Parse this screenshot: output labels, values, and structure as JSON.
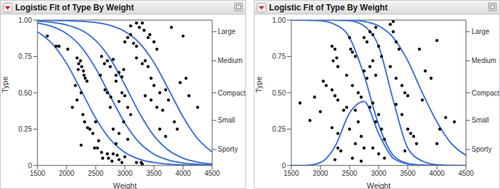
{
  "chart_data": [
    {
      "type": "scatter",
      "title": "Logistic Fit of Type By Weight",
      "x_label": "Weight",
      "y_label": "Type",
      "xlim": [
        1500,
        4500
      ],
      "xticks": [
        1500,
        2000,
        2500,
        3000,
        3500,
        4000,
        4500
      ],
      "ylim": [
        0,
        1
      ],
      "yticks": [
        0,
        0.25,
        {
          "value": 0.5,
          "label": "0.50"
        },
        0.75,
        {
          "value": 1,
          "label": "1.00"
        }
      ],
      "y2lim": [
        0,
        1
      ],
      "y2ticks": [
        {
          "value": 0.11,
          "label": "Sporty"
        },
        {
          "value": 0.31,
          "label": "Small"
        },
        {
          "value": 0.5,
          "label": "Compact"
        },
        {
          "value": 0.72,
          "label": "Medium"
        },
        {
          "value": 0.92,
          "label": "Large"
        }
      ],
      "x": [
        1500,
        1750,
        2000,
        2250,
        2500,
        2750,
        3000,
        3250,
        3500,
        3750,
        4000,
        4250,
        4500
      ],
      "series": [
        {
          "type": "scatter",
          "color": "#000000",
          "marker": "circle",
          "x": [
            1670,
            1820,
            1870,
            2020,
            2180,
            2210,
            2240,
            2260,
            2290,
            2300,
            2320,
            2350,
            2200,
            2150,
            2250,
            2100,
            2180,
            2280,
            2310,
            2360,
            2250,
            2450,
            2400,
            2480,
            2530,
            2600,
            2700,
            2720,
            2780,
            2800,
            2870,
            2900,
            2950,
            3000,
            3200,
            3280,
            3300,
            2620,
            2550,
            2500,
            2650,
            2700,
            2750,
            2800,
            2850,
            2900,
            2950,
            2980,
            2660,
            2700,
            2760,
            2850,
            2900,
            2950,
            3000,
            3050,
            3100,
            2750,
            2600,
            2580,
            2900,
            2980,
            3050,
            2800,
            2850,
            3000,
            3050,
            3100,
            3150,
            3200,
            3250,
            3300,
            3330,
            3400,
            3430,
            3500,
            3550,
            3200,
            3300,
            3350,
            3400,
            3450,
            3500,
            3600,
            3700,
            3350,
            3450,
            3550,
            3650,
            3750,
            3600,
            3700,
            3850,
            3900,
            4000,
            3800,
            4050,
            4100,
            4250,
            3950,
            3100,
            3200
          ],
          "values": [
            0.89,
            0.82,
            0.82,
            0.8,
            0.74,
            0.7,
            0.72,
            0.68,
            0.65,
            0.62,
            0.6,
            0.58,
            0.66,
            0.55,
            0.5,
            0.4,
            0.45,
            0.35,
            0.3,
            0.26,
            0.14,
            0.22,
            0.25,
            0.12,
            0.12,
            0.09,
            0.08,
            0.05,
            0.03,
            0.08,
            0.07,
            0.04,
            0.02,
            0.06,
            0.02,
            0.02,
            0.01,
            0.05,
            0.17,
            0.3,
            0.7,
            0.72,
            0.68,
            0.73,
            0.62,
            0.64,
            0.61,
            0.66,
            0.52,
            0.5,
            0.47,
            0.58,
            0.44,
            0.5,
            0.48,
            0.4,
            0.35,
            0.4,
            0.75,
            0.62,
            0.22,
            0.3,
            0.18,
            0.25,
            0.15,
            0.85,
            0.88,
            0.9,
            0.84,
            0.82,
            0.95,
            0.98,
            0.93,
            0.88,
            0.9,
            0.85,
            0.8,
            0.74,
            0.7,
            0.72,
            0.68,
            0.6,
            0.55,
            0.5,
            0.52,
            0.48,
            0.45,
            0.4,
            0.38,
            0.45,
            0.25,
            0.2,
            0.3,
            0.25,
            0.89,
            0.95,
            0.6,
            0.48,
            0.4,
            0.57,
            0.96,
            0.98
          ]
        },
        {
          "type": "line",
          "color": "#3f72d6",
          "line_style": "solid",
          "values": [
            0.92,
            0.839,
            0.702,
            0.516,
            0.325,
            0.179,
            0.09,
            0.043,
            0.02,
            0.009,
            0.004,
            0.002,
            0.001
          ]
        },
        {
          "type": "line",
          "color": "#3f72d6",
          "line_style": "solid",
          "values": [
            0.98,
            0.956,
            0.907,
            0.816,
            0.668,
            0.476,
            0.292,
            0.157,
            0.078,
            0.037,
            0.017,
            0.008,
            0.004
          ]
        },
        {
          "type": "line",
          "color": "#3f72d6",
          "line_style": "solid",
          "values": [
            0.993,
            0.985,
            0.967,
            0.931,
            0.859,
            0.734,
            0.555,
            0.361,
            0.204,
            0.104,
            0.05,
            0.023,
            0.011
          ]
        },
        {
          "type": "line",
          "color": "#3f72d6",
          "line_style": "solid",
          "values": [
            0.999,
            0.998,
            0.996,
            0.992,
            0.983,
            0.963,
            0.922,
            0.843,
            0.708,
            0.524,
            0.334,
            0.184,
            0.093
          ]
        }
      ]
    },
    {
      "type": "scatter",
      "title": "Logistic Fit of Type By Weight",
      "x_label": "Weight",
      "y_label": "Type",
      "xlim": [
        1500,
        4500
      ],
      "xticks": [
        1500,
        2000,
        2500,
        3000,
        3500,
        4000,
        4500
      ],
      "ylim": [
        0,
        1
      ],
      "yticks": [
        0,
        0.25,
        {
          "value": 0.5,
          "label": "0.50"
        },
        0.75,
        {
          "value": 1,
          "label": "1.00"
        }
      ],
      "y2lim": [
        0,
        1
      ],
      "y2ticks": [
        {
          "value": 0.11,
          "label": "Sporty"
        },
        {
          "value": 0.31,
          "label": "Small"
        },
        {
          "value": 0.5,
          "label": "Compact"
        },
        {
          "value": 0.72,
          "label": "Medium"
        },
        {
          "value": 0.92,
          "label": "Large"
        }
      ],
      "x": [
        1500,
        1750,
        2000,
        2250,
        2500,
        2750,
        3000,
        3250,
        3500,
        3750,
        4000,
        4250,
        4500
      ],
      "series": [
        {
          "type": "scatter",
          "color": "#000000",
          "marker": "circle",
          "x": [
            1650,
            1820,
            1900,
            2000,
            2050,
            2100,
            2200,
            2220,
            2250,
            2280,
            2300,
            2200,
            2250,
            2300,
            2200,
            2300,
            2250,
            2300,
            2350,
            2400,
            2450,
            2500,
            2520,
            2550,
            2600,
            2450,
            2550,
            2650,
            2700,
            2600,
            2650,
            2500,
            2600,
            2700,
            2750,
            2550,
            2700,
            2750,
            2800,
            2850,
            2900,
            2950,
            2750,
            2800,
            2850,
            2900,
            2950,
            3000,
            3050,
            2850,
            2900,
            2950,
            3000,
            3050,
            3100,
            2900,
            3000,
            3100,
            3200,
            3250,
            3250,
            3300,
            3350,
            3200,
            3300,
            3400,
            3450,
            3500,
            3300,
            3400,
            3500,
            3550,
            3600,
            3450,
            3650,
            3750,
            3800,
            3900,
            4000,
            4000,
            4050,
            4150,
            4300,
            3700
          ],
          "values": [
            0.43,
            0.31,
            0.47,
            0.37,
            0.58,
            0.55,
            0.82,
            0.72,
            0.8,
            0.74,
            0.68,
            0.52,
            0.48,
            0.45,
            0.26,
            0.22,
            0.04,
            0.12,
            0.1,
            0.38,
            0.4,
            0.88,
            0.8,
            0.78,
            0.75,
            0.62,
            0.55,
            0.5,
            0.47,
            0.38,
            0.3,
            0.25,
            0.15,
            0.2,
            0.12,
            0.05,
            0.03,
            0.65,
            0.6,
            0.68,
            0.72,
            0.62,
            0.88,
            0.85,
            0.92,
            0.9,
            0.95,
            0.82,
            0.75,
            0.4,
            0.43,
            0.3,
            0.35,
            0.25,
            0.18,
            0.12,
            0.08,
            0.05,
            0.97,
            0.99,
            0.92,
            0.85,
            0.8,
            0.68,
            0.6,
            0.55,
            0.5,
            0.48,
            0.42,
            0.35,
            0.25,
            0.22,
            0.2,
            0.1,
            0.15,
            0.45,
            0.65,
            0.6,
            0.86,
            0.15,
            0.25,
            0.33,
            0.3,
            0.8
          ]
        },
        {
          "type": "line",
          "color": "#3f72d6",
          "line_style": "solid",
          "values": [
            0,
            0,
            0.02,
            0.13,
            0.36,
            0.44,
            0.22,
            0.05,
            0.01,
            0,
            0,
            0,
            0
          ]
        },
        {
          "type": "line",
          "color": "#3f72d6",
          "line_style": "solid",
          "values": [
            1,
            0.999,
            0.995,
            0.97,
            0.88,
            0.62,
            0.28,
            0.07,
            0.015,
            0.003,
            0.001,
            0,
            0
          ]
        },
        {
          "type": "line",
          "color": "#3f72d6",
          "line_style": "solid",
          "values": [
            1,
            1,
            1,
            0.999,
            0.995,
            0.96,
            0.82,
            0.45,
            0.12,
            0.03,
            0.005,
            0.001,
            0
          ]
        },
        {
          "type": "line",
          "color": "#3f72d6",
          "line_style": "solid",
          "values": [
            1,
            1,
            1,
            1,
            1,
            0.99,
            0.96,
            0.88,
            0.72,
            0.5,
            0.3,
            0.15,
            0.07
          ]
        }
      ]
    }
  ]
}
